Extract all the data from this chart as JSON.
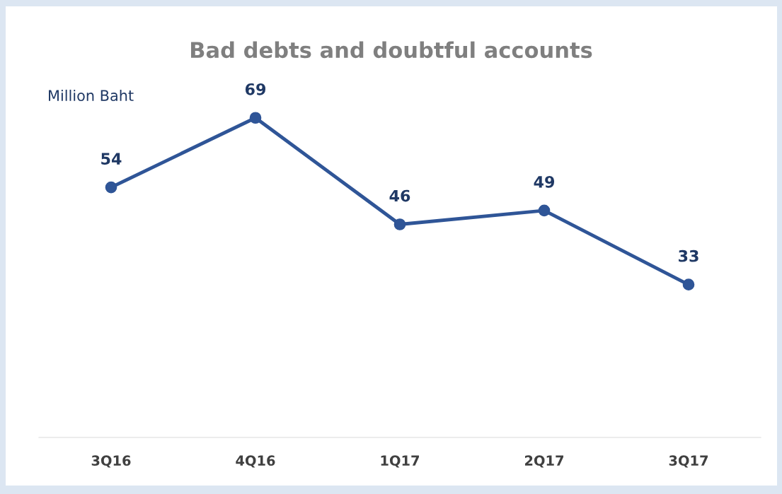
{
  "chart_data": {
    "type": "line",
    "title": "Bad debts and doubtful accounts",
    "annotations": [
      "Million Baht"
    ],
    "categories": [
      "3Q16",
      "4Q16",
      "1Q17",
      "2Q17",
      "3Q17"
    ],
    "series": [
      {
        "color": "#2f5597",
        "values": [
          54,
          69,
          46,
          49,
          33
        ]
      }
    ],
    "tick_labels": "x",
    "data_labels": true,
    "marker": "circle",
    "line_style": "solid",
    "grid": false,
    "legend": false
  }
}
